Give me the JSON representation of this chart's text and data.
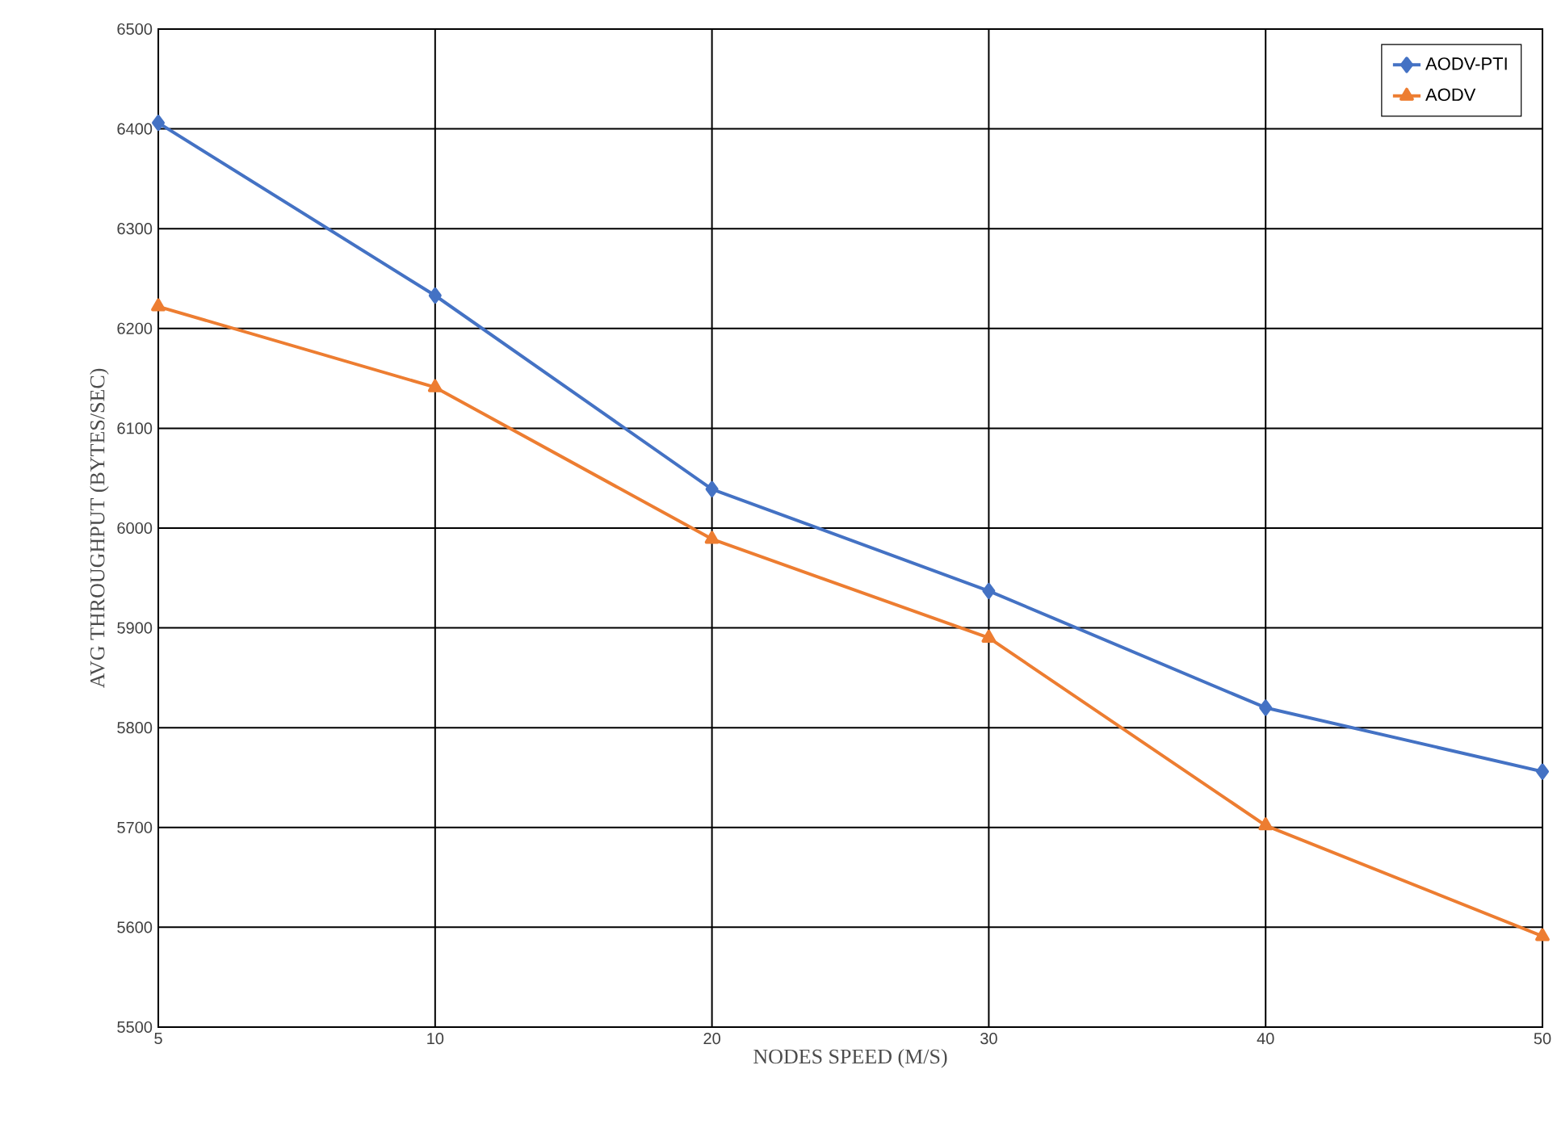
{
  "chart_data": {
    "type": "line",
    "xlabel": "NODES SPEED (M/S)",
    "ylabel": "AVG THROUGHPUT (BYTES/SEC)",
    "categories": [
      "5",
      "10",
      "20",
      "30",
      "40",
      "50"
    ],
    "series": [
      {
        "name": "AODV-PTI",
        "color": "#4472c4",
        "marker": "diamond",
        "values": [
          6406,
          6233,
          6039,
          5937,
          5820,
          5756
        ]
      },
      {
        "name": "AODV",
        "color": "#ed7d31",
        "marker": "triangle",
        "values": [
          6222,
          6141,
          5989,
          5890,
          5702,
          5591
        ]
      }
    ],
    "ylim": [
      5500,
      6500
    ],
    "yticks": [
      5500,
      5600,
      5700,
      5800,
      5900,
      6000,
      6100,
      6200,
      6300,
      6400,
      6500
    ],
    "grid": true,
    "legend": "top right",
    "line_style": "solid"
  }
}
